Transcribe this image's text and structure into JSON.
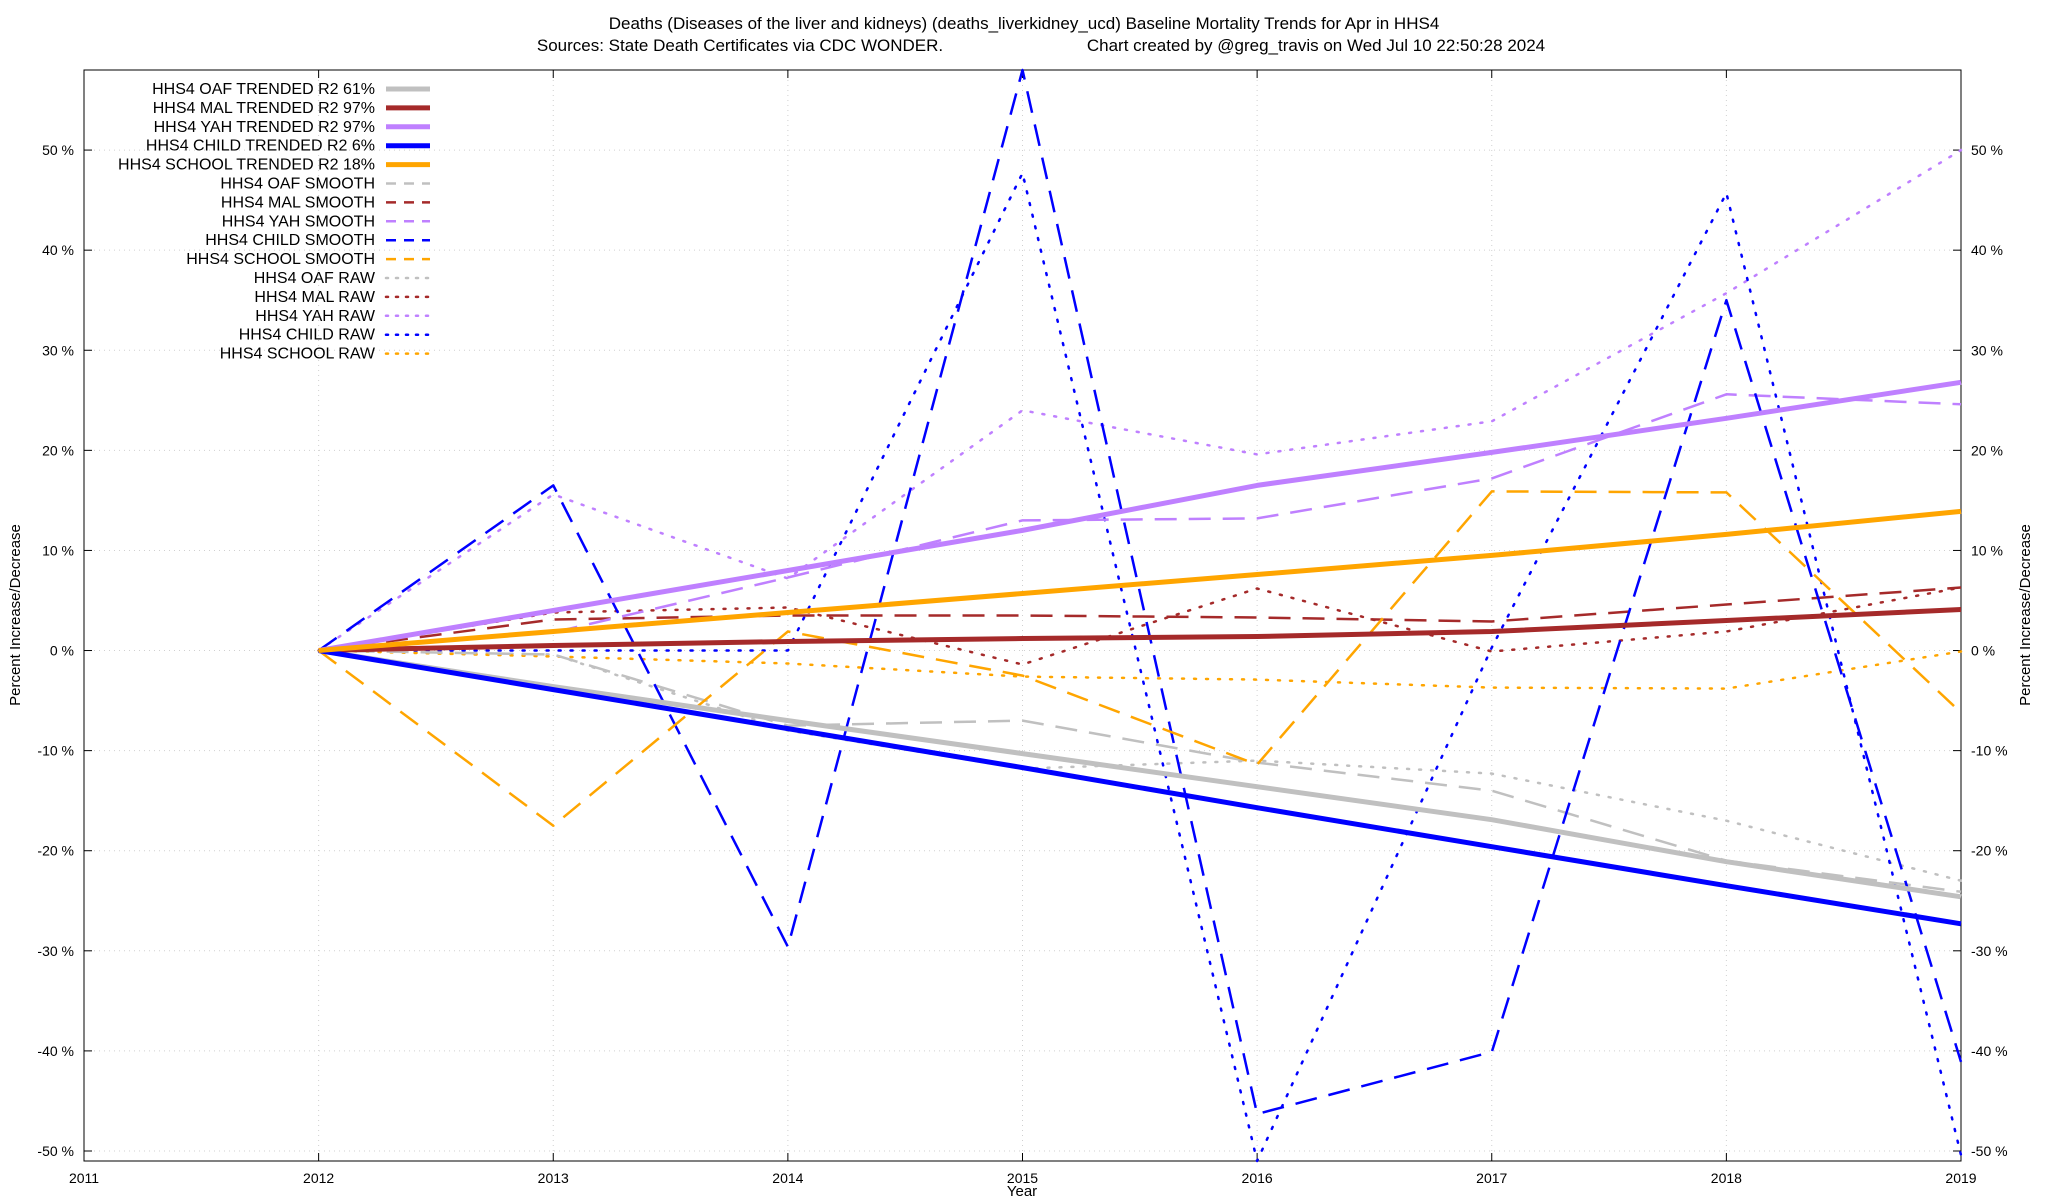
{
  "chart_data": {
    "type": "line",
    "title_line1": "Deaths (Diseases of the liver and kidneys) (deaths_liverkidney_ucd)  Baseline Mortality Trends for Apr in HHS4",
    "title_line2_left": "Sources: State Death Certificates via CDC WONDER.",
    "title_line2_right": "Chart created by @greg_travis on Wed Jul 10 22:50:28 2024",
    "xlabel": "Year",
    "ylabel_left": "Percent Increase/Decrease",
    "ylabel_right": "Percent Increase/Decrease",
    "xlim": [
      2011,
      2019
    ],
    "ylim": [
      -51,
      58
    ],
    "x_ticks": [
      "2011",
      "2012",
      "2013",
      "2014",
      "2015",
      "2016",
      "2017",
      "2018",
      "2019"
    ],
    "y_ticks": [
      {
        "value": -50,
        "label": "-50 %"
      },
      {
        "value": -40,
        "label": "-40 %"
      },
      {
        "value": -30,
        "label": "-30 %"
      },
      {
        "value": -20,
        "label": "-20 %"
      },
      {
        "value": -10,
        "label": "-10 %"
      },
      {
        "value": 0,
        "label": "0 %"
      },
      {
        "value": 10,
        "label": "10 %"
      },
      {
        "value": 20,
        "label": "20 %"
      },
      {
        "value": 30,
        "label": "30 %"
      },
      {
        "value": 40,
        "label": "40 %"
      },
      {
        "value": 50,
        "label": "50 %"
      }
    ],
    "grid": true,
    "legend_position": "top-left",
    "colors": {
      "oaf": "#c0c0c0",
      "mal": "#a52a2a",
      "yah": "#bf80ff",
      "child": "#0000ff",
      "school": "#ffa500"
    },
    "x": [
      2012,
      2013,
      2014,
      2015,
      2016,
      2017,
      2018,
      2019
    ],
    "series": [
      {
        "id": "oaf-trended",
        "name": "HHS4 OAF TRENDED R2  61%",
        "style": "solid",
        "color": "#c0c0c0",
        "values": [
          0,
          -3.6,
          -7.0,
          -10.3,
          -13.6,
          -16.9,
          -21.1,
          -24.6
        ]
      },
      {
        "id": "mal-trended",
        "name": "HHS4 MAL TRENDED R2  97%",
        "style": "solid",
        "color": "#a52a2a",
        "values": [
          0,
          0.5,
          0.9,
          1.2,
          1.4,
          1.9,
          3.0,
          4.1
        ]
      },
      {
        "id": "yah-trended",
        "name": "HHS4 YAH TRENDED R2  97%",
        "style": "solid",
        "color": "#bf80ff",
        "values": [
          0,
          4.0,
          8.0,
          12.0,
          16.5,
          19.8,
          23.2,
          26.8
        ]
      },
      {
        "id": "child-trended",
        "name": "HHS4 CHILD TRENDED R2   6%",
        "style": "solid",
        "color": "#0000ff",
        "values": [
          0,
          -3.9,
          -7.8,
          -11.7,
          -15.7,
          -19.6,
          -23.5,
          -27.3
        ]
      },
      {
        "id": "school-trended",
        "name": "HHS4 SCHOOL TRENDED R2  18%",
        "style": "solid",
        "color": "#ffa500",
        "values": [
          0,
          1.9,
          3.8,
          5.7,
          7.6,
          9.5,
          11.6,
          13.9
        ]
      },
      {
        "id": "oaf-smooth",
        "name": "HHS4 OAF SMOOTH",
        "style": "dashed",
        "color": "#c0c0c0",
        "values": [
          0,
          -0.4,
          -7.5,
          -7.0,
          -11.2,
          -14.0,
          -21.0,
          -24.1
        ]
      },
      {
        "id": "mal-smooth",
        "name": "HHS4 MAL SMOOTH",
        "style": "dashed",
        "color": "#a52a2a",
        "values": [
          0,
          3.1,
          3.5,
          3.5,
          3.3,
          2.9,
          4.6,
          6.3
        ]
      },
      {
        "id": "yah-smooth",
        "name": "HHS4 YAH SMOOTH",
        "style": "dashed",
        "color": "#bf80ff",
        "values": [
          0,
          1.8,
          7.3,
          13.0,
          13.2,
          17.2,
          25.6,
          24.6
        ]
      },
      {
        "id": "child-smooth",
        "name": "HHS4 CHILD SMOOTH",
        "style": "dashed",
        "color": "#0000ff",
        "values": [
          0,
          16.5,
          -29.6,
          58.5,
          -46.3,
          -40.1,
          35.0,
          -41.1
        ]
      },
      {
        "id": "school-smooth",
        "name": "HHS4 SCHOOL SMOOTH",
        "style": "dashed",
        "color": "#ffa500",
        "values": [
          0,
          -17.5,
          1.9,
          -2.5,
          -11.4,
          15.9,
          15.8,
          -6.2
        ]
      },
      {
        "id": "oaf-raw",
        "name": "HHS4 OAF RAW",
        "style": "dotted",
        "color": "#c0c0c0",
        "values": [
          0,
          -0.4,
          -8.0,
          -11.8,
          -11.0,
          -12.3,
          -17.0,
          -23.0
        ]
      },
      {
        "id": "mal-raw",
        "name": "HHS4 MAL RAW",
        "style": "dotted",
        "color": "#a52a2a",
        "values": [
          0,
          3.8,
          4.3,
          -1.4,
          6.2,
          -0.1,
          1.9,
          6.3
        ]
      },
      {
        "id": "yah-raw",
        "name": "HHS4 YAH RAW",
        "style": "dotted",
        "color": "#bf80ff",
        "values": [
          0,
          15.6,
          7.2,
          24.0,
          19.6,
          22.9,
          35.7,
          50.0
        ]
      },
      {
        "id": "child-raw",
        "name": "HHS4 CHILD RAW",
        "style": "dotted",
        "color": "#0000ff",
        "values": [
          0,
          0,
          0,
          47.7,
          -51.0,
          0.3,
          45.7,
          -50.4
        ]
      },
      {
        "id": "school-raw",
        "name": "HHS4 SCHOOL RAW",
        "style": "dotted",
        "color": "#ffa500",
        "values": [
          0,
          -0.6,
          -1.3,
          -2.6,
          -2.9,
          -3.7,
          -3.8,
          -0.1
        ]
      }
    ]
  }
}
